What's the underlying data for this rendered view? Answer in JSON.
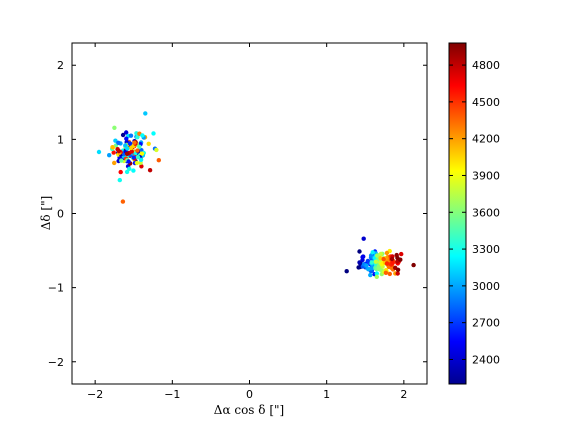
{
  "chart_data": {
    "type": "scatter",
    "title": "",
    "xlabel": "Δα cos δ [\"]",
    "ylabel": "Δδ [\"]",
    "xlim": [
      -2.3,
      2.3
    ],
    "ylim": [
      -2.3,
      2.3
    ],
    "xticks": [
      -2,
      -1,
      0,
      1,
      2
    ],
    "xtick_labels": [
      "−2",
      "−1",
      "0",
      "1",
      "2"
    ],
    "yticks": [
      -2,
      -1,
      0,
      1,
      2
    ],
    "ytick_labels": [
      "−2",
      "−1",
      "0",
      "1",
      "2"
    ],
    "grid": false,
    "colorbar": {
      "colormap": "jet",
      "range": [
        2200,
        4980
      ],
      "ticks": [
        2400,
        2700,
        3000,
        3300,
        3600,
        3900,
        4200,
        4500,
        4800
      ],
      "tick_labels": [
        "2400",
        "2700",
        "3000",
        "3300",
        "3600",
        "3900",
        "4200",
        "4500",
        "4800"
      ]
    },
    "clusters": [
      {
        "center": [
          -1.55,
          0.85
        ],
        "spread": [
          0.13,
          0.12
        ],
        "count": 130,
        "value_range": [
          2200,
          4980
        ],
        "color_mode": "random",
        "outliers": [
          [
            -1.64,
            0.16
          ],
          [
            -1.35,
            1.35
          ],
          [
            -1.95,
            0.83
          ],
          [
            -1.68,
            0.45
          ]
        ]
      },
      {
        "center": [
          1.7,
          -0.67
        ],
        "spread": [
          0.13,
          0.07
        ],
        "count": 160,
        "value_range": [
          2200,
          4980
        ],
        "color_mode": "gradient_x",
        "outliers": [
          [
            1.48,
            -0.34
          ],
          [
            1.92,
            -0.81
          ]
        ]
      }
    ]
  }
}
